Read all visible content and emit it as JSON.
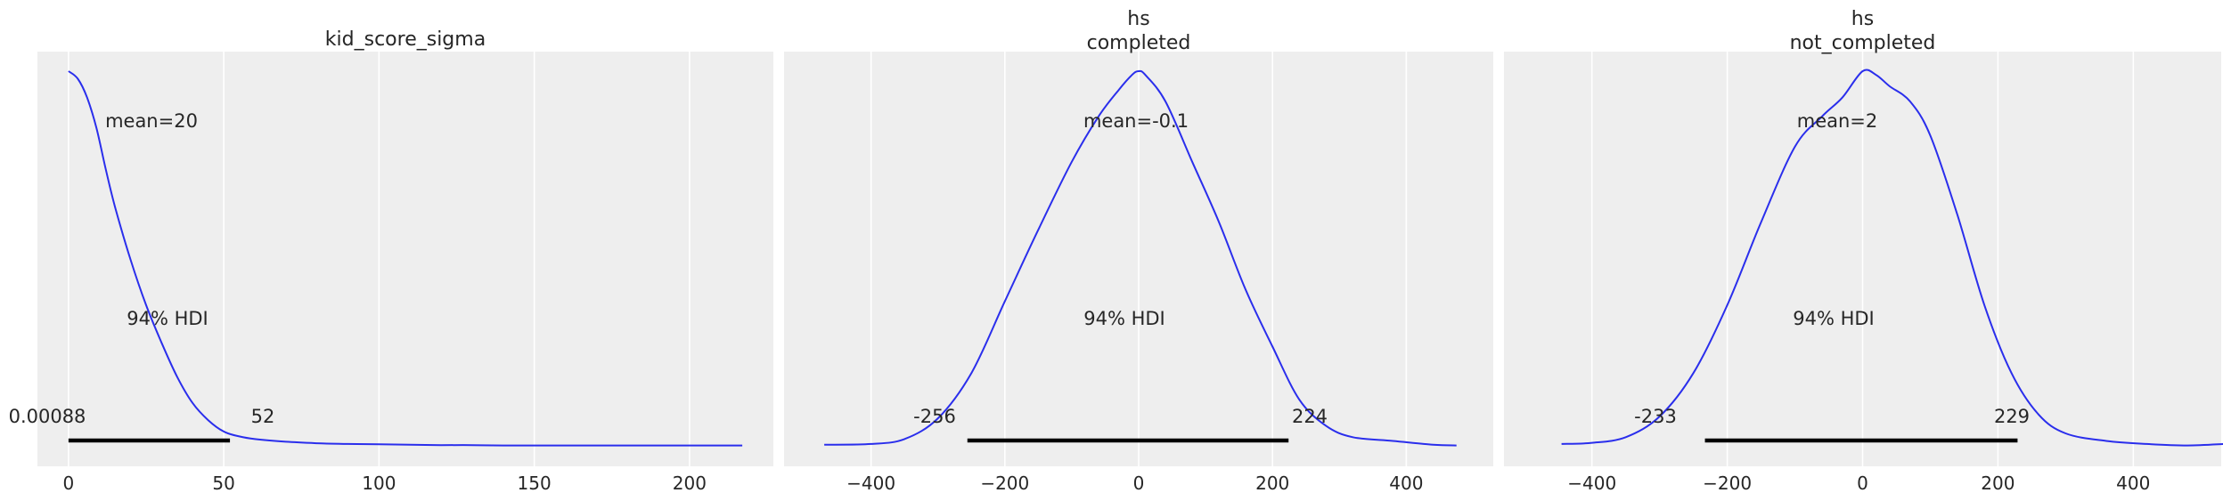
{
  "chart_data": [
    {
      "type": "line",
      "title": "kid_score_sigma",
      "subtitle": "",
      "color": "#2a2eec",
      "xlim": [
        -10,
        227
      ],
      "xticks": [
        0,
        50,
        100,
        150,
        200
      ],
      "xtick_labels": [
        "0",
        "50",
        "100",
        "150",
        "200"
      ],
      "grid": true,
      "x": [
        0,
        3,
        6,
        9,
        12,
        15,
        20,
        25,
        30,
        35,
        40,
        45,
        50,
        55,
        60,
        70,
        80,
        90,
        100,
        120,
        130,
        140,
        160,
        180,
        200,
        217
      ],
      "y": [
        1.0,
        0.98,
        0.93,
        0.85,
        0.74,
        0.64,
        0.5,
        0.38,
        0.28,
        0.19,
        0.12,
        0.075,
        0.045,
        0.032,
        0.025,
        0.018,
        0.014,
        0.012,
        0.011,
        0.009,
        0.009,
        0.008,
        0.008,
        0.008,
        0.008,
        0.008
      ],
      "mean_label": "mean=20",
      "hdi_label": "94% HDI",
      "hdi": [
        0.00088,
        52
      ],
      "hdi_labels": [
        "0.00088",
        "52"
      ]
    },
    {
      "type": "line",
      "title": "hs",
      "subtitle": "completed",
      "color": "#2a2eec",
      "xlim": [
        -530,
        530
      ],
      "xticks": [
        -400,
        -200,
        0,
        200,
        400
      ],
      "xtick_labels": [
        "−400",
        "−200",
        "0",
        "200",
        "400"
      ],
      "grid": true,
      "x": [
        -470,
        -400,
        -350,
        -300,
        -250,
        -200,
        -150,
        -100,
        -60,
        -30,
        -10,
        0,
        10,
        40,
        80,
        120,
        160,
        200,
        240,
        280,
        320,
        380,
        440,
        475
      ],
      "y": [
        0.01,
        0.012,
        0.025,
        0.08,
        0.2,
        0.39,
        0.58,
        0.76,
        0.88,
        0.95,
        0.99,
        1.0,
        0.99,
        0.92,
        0.76,
        0.6,
        0.42,
        0.27,
        0.13,
        0.06,
        0.03,
        0.02,
        0.01,
        0.008
      ],
      "mean_label": "mean=-0.1",
      "hdi_label": "94% HDI",
      "hdi": [
        -256,
        224
      ],
      "hdi_labels": [
        "-256",
        "224"
      ]
    },
    {
      "type": "line",
      "title": "hs",
      "subtitle": "not_completed",
      "color": "#2a2eec",
      "xlim": [
        -530,
        530
      ],
      "xticks": [
        -400,
        -200,
        0,
        200,
        400
      ],
      "xtick_labels": [
        "−400",
        "−200",
        "0",
        "200",
        "400"
      ],
      "grid": true,
      "x": [
        -445,
        -400,
        -350,
        -300,
        -250,
        -200,
        -150,
        -100,
        -60,
        -30,
        0,
        20,
        40,
        70,
        100,
        140,
        180,
        220,
        260,
        300,
        360,
        420,
        480,
        535
      ],
      "y": [
        0.012,
        0.015,
        0.03,
        0.085,
        0.2,
        0.38,
        0.6,
        0.8,
        0.88,
        0.93,
        1.0,
        0.99,
        0.96,
        0.92,
        0.83,
        0.62,
        0.38,
        0.2,
        0.09,
        0.04,
        0.02,
        0.012,
        0.008,
        0.012
      ],
      "mean_label": "mean=2",
      "hdi_label": "94% HDI",
      "hdi": [
        -233,
        229
      ],
      "hdi_labels": [
        "-233",
        "229"
      ]
    }
  ]
}
